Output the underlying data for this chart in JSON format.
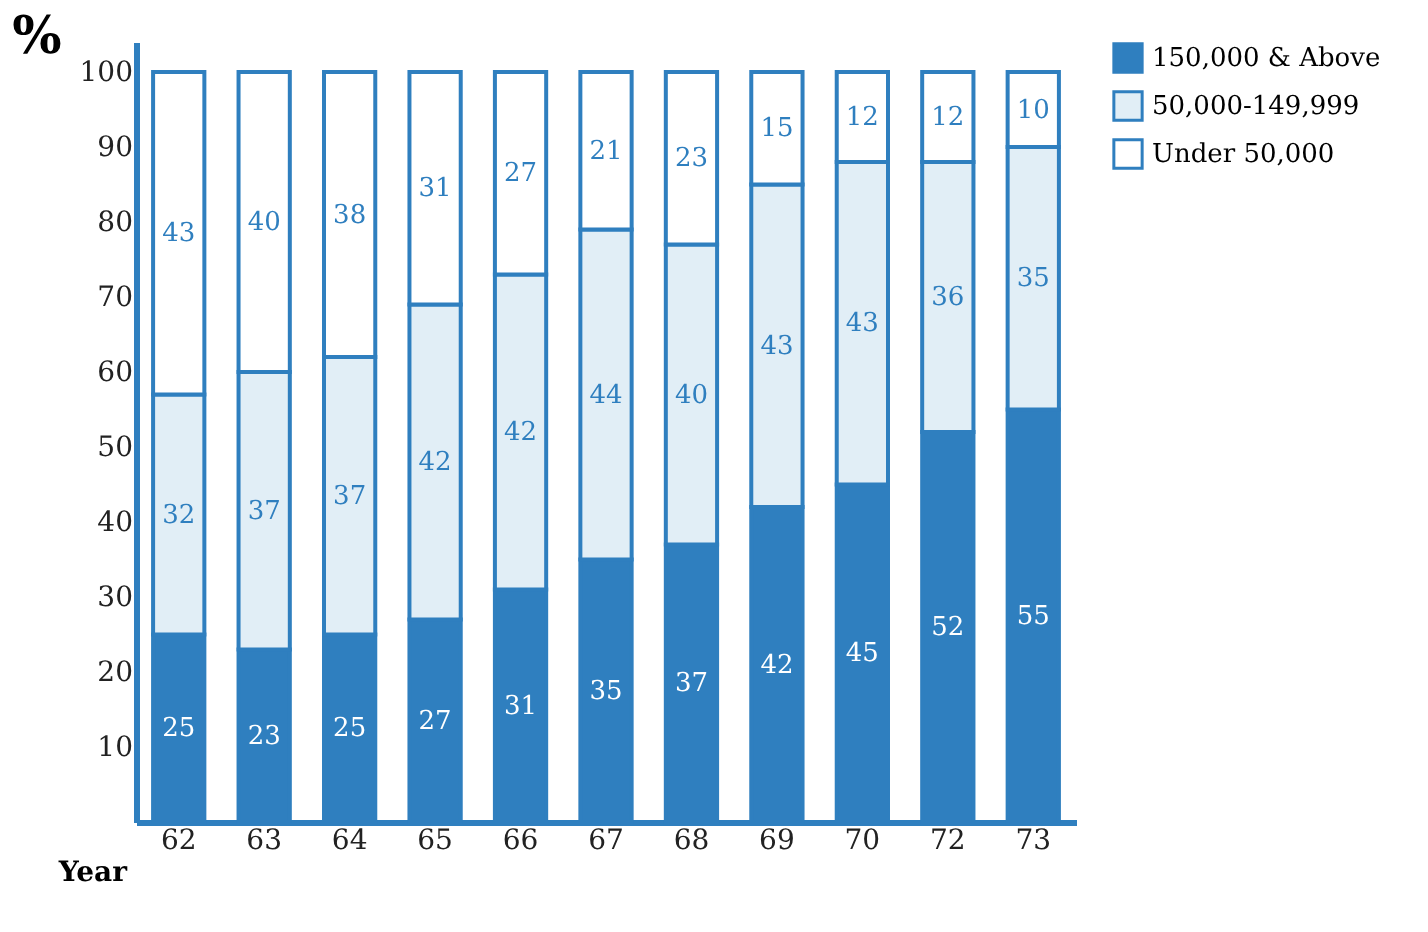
{
  "chart_data": {
    "type": "bar",
    "stacked": true,
    "xlabel": "Year",
    "ylabel": "%",
    "categories": [
      "62",
      "63",
      "64",
      "65",
      "66",
      "67",
      "68",
      "69",
      "70",
      "72",
      "73"
    ],
    "series": [
      {
        "name": "150,000 & Above",
        "color": "#2f7fbf",
        "values": [
          25,
          23,
          25,
          27,
          31,
          35,
          37,
          42,
          45,
          52,
          55
        ]
      },
      {
        "name": "50,000-149,999",
        "color": "#e1eef6",
        "values": [
          32,
          37,
          37,
          42,
          42,
          44,
          40,
          43,
          43,
          36,
          35
        ]
      },
      {
        "name": "Under 50,000",
        "color": "#ffffff",
        "values": [
          43,
          40,
          38,
          31,
          27,
          21,
          23,
          15,
          12,
          12,
          10
        ]
      }
    ],
    "ylim": [
      0,
      104
    ],
    "yticks": [
      10,
      20,
      30,
      40,
      50,
      60,
      70,
      80,
      90,
      100
    ],
    "grid": false,
    "legend": "right",
    "data_labels": true
  }
}
